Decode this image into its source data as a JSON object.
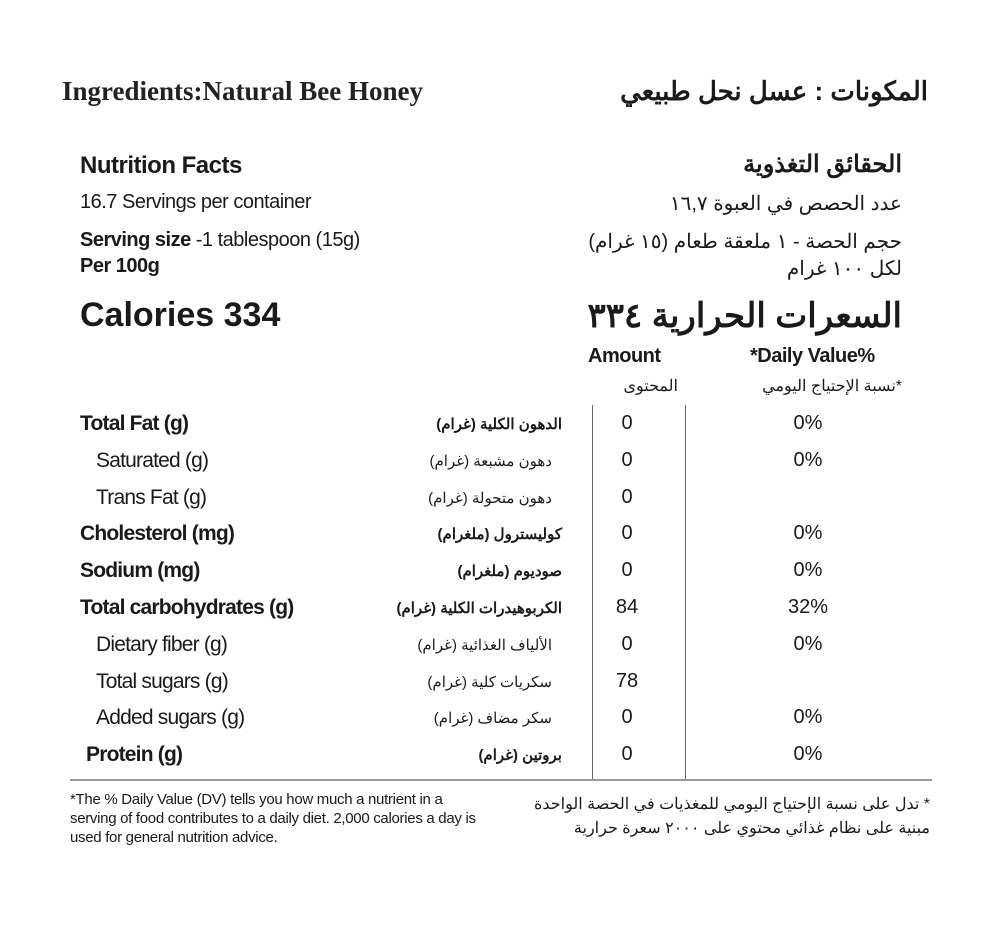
{
  "ingredients": {
    "en": "Ingredients:Natural Bee Honey",
    "ar": "المكونات : عسل نحل طبيعي"
  },
  "header": {
    "title_en": "Nutrition Facts",
    "title_ar": "الحقائق التغذوية",
    "servings_en": "16.7 Servings per container",
    "servings_ar": "عدد الحصص في العبوة ١٦,٧",
    "serving_size_label": "Serving size",
    "serving_size_value": " -1 tablespoon (15g)",
    "serving_size_ar": "حجم الحصة - ١ ملعقة طعام (١٥ غرام)",
    "per_en": "Per 100g",
    "per_ar": "لكل ١٠٠ غرام",
    "calories_en": "Calories  334",
    "calories_ar": "السعرات الحرارية ٣٣٤"
  },
  "columns": {
    "amount_en": "Amount",
    "amount_ar": "المحتوى",
    "dv_en": "*Daily Value%",
    "dv_ar": "*نسبة الإحتياج اليومي"
  },
  "rows": [
    {
      "en": "Total Fat (g)",
      "ar": "الدهون الكلية (غرام)",
      "amount": "0",
      "dv": "0%",
      "bold": true
    },
    {
      "en": "Saturated  (g)",
      "ar": "دهون مشبعة (غرام)",
      "amount": "0",
      "dv": "0%",
      "bold": false
    },
    {
      "en": "Trans Fat (g)",
      "ar": "دهون متحولة (غرام)",
      "amount": "0",
      "dv": "",
      "bold": false
    },
    {
      "en": "Cholesterol  (mg)",
      "ar": "كوليسترول (ملغرام)",
      "amount": "0",
      "dv": "0%",
      "bold": true
    },
    {
      "en": "Sodium  (mg)",
      "ar": "صوديوم (ملغرام)",
      "amount": "0",
      "dv": "0%",
      "bold": true
    },
    {
      "en": "Total carbohydrates (g)",
      "ar": "الكربوهيدرات الكلية (غرام)",
      "amount": "84",
      "dv": "32%",
      "bold": true
    },
    {
      "en": "Dietary fiber (g)",
      "ar": "الألياف الغذائية (غرام)",
      "amount": "0",
      "dv": "0%",
      "bold": false
    },
    {
      "en": "Total sugars (g)",
      "ar": "سكريات كلية (غرام)",
      "amount": "78",
      "dv": "",
      "bold": false
    },
    {
      "en": "Added sugars (g)",
      "ar": "سكر مضاف (غرام)",
      "amount": "0",
      "dv": "0%",
      "bold": false
    },
    {
      "en": "Protein (g)",
      "ar": "بروتين (غرام)",
      "amount": "0",
      "dv": "0%",
      "bold": true
    }
  ],
  "footnote": {
    "en": "*The % Daily Value (DV) tells you how much a nutrient in a serving of food contributes to  a daily diet. 2,000 calories a day is used for general nutrition advice.",
    "ar": "* تدل على نسبة الإحتياج اليومي للمغذيات في الحصة الواحدة مبنية على نظام غذائي محتوي على ٢٠٠٠ سعرة حرارية"
  }
}
